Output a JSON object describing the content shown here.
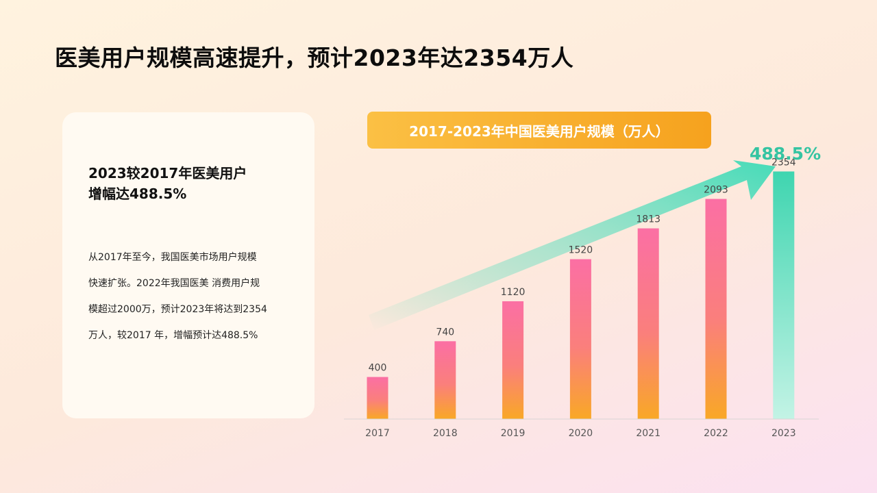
{
  "page": {
    "title": "医美用户规模高速提升，预计2023年达2354万人"
  },
  "card": {
    "heading_line1": "2023较2017年医美用户",
    "heading_line2": "增幅达488.5%",
    "body_lines": [
      "从2017年至今，我国医美市场用户规模",
      "快速扩张。2022年我国医美 消费用户规",
      "模超过2000万，预计2023年将达到2354",
      "万人，较2017 年，增幅预计达488.5%"
    ]
  },
  "chart_banner": "2017-2023年中国医美用户规模（万人）",
  "growth_label": "488.5%",
  "colors": {
    "bar_top_pink": "#fb6fa4",
    "bar_bottom_orange": "#f9a826",
    "highlight_bar_top": "#3fd5b0",
    "highlight_bar_bottom": "#c3f3e5",
    "arrow": "#4fddbc",
    "banner_orange": "#f6a21e"
  },
  "chart_data": {
    "type": "bar",
    "title": "2017-2023年中国医美用户规模（万人）",
    "categories": [
      "2017",
      "2018",
      "2019",
      "2020",
      "2021",
      "2022",
      "2023"
    ],
    "values": [
      400,
      740,
      1120,
      1520,
      1813,
      2093,
      2354
    ],
    "value_labels": [
      "400",
      "740",
      "1120",
      "1520",
      "1813",
      "2093",
      "2354"
    ],
    "highlight_index": 6,
    "ylim": [
      0,
      2500
    ],
    "grid": false,
    "annotation": "488.5%"
  }
}
